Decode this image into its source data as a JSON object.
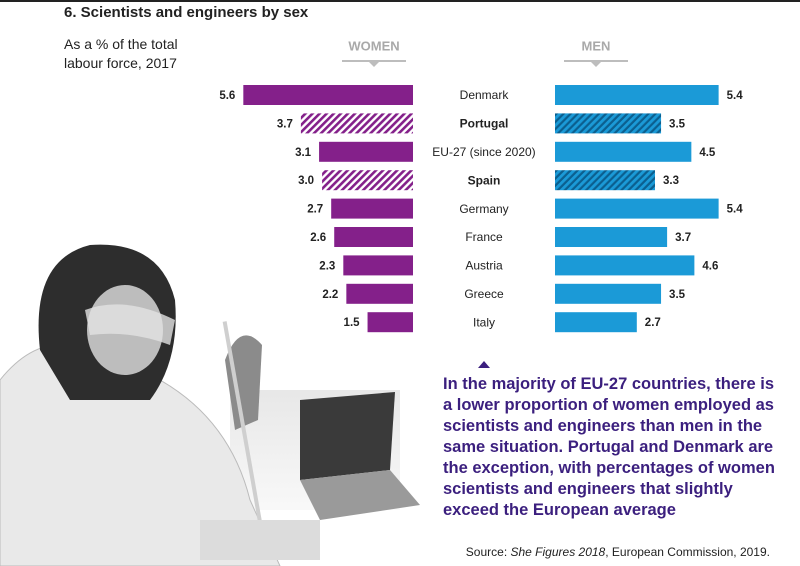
{
  "chart_data": {
    "type": "butterfly-bar",
    "title": "6. Scientists and engineers by sex",
    "subtitle": "As a % of the total labour force, 2017",
    "categories": [
      "Denmark",
      "Portugal",
      "EU-27 (since 2020)",
      "Spain",
      "Germany",
      "France",
      "Austria",
      "Greece",
      "Italy"
    ],
    "highlight": [
      1,
      3
    ],
    "series": [
      {
        "name": "WOMEN",
        "color": "#84208a",
        "side": "left",
        "values": [
          5.6,
          3.7,
          3.1,
          3.0,
          2.7,
          2.6,
          2.3,
          2.2,
          1.5
        ],
        "value_labels": [
          "5.6",
          "3.7",
          "3.1",
          "3.0",
          "2.7",
          "2.6",
          "2.3",
          "2.2",
          "1.5"
        ]
      },
      {
        "name": "MEN",
        "color": "#1b9ad7",
        "side": "right",
        "values": [
          5.4,
          3.5,
          4.5,
          3.3,
          5.4,
          3.7,
          4.6,
          3.5,
          2.7
        ]
      }
    ],
    "annotation": "In the majority of EU-27 countries, there is a lower proportion of women employed as scientists and engineers than men in the same situation. Portugal and Denmark are the exception, with percentages of women scientists and engineers that slightly exceed the European average",
    "source": {
      "label": "Source:",
      "title": "She Figures 2018",
      "rest": ", European Commission, 2019."
    }
  }
}
